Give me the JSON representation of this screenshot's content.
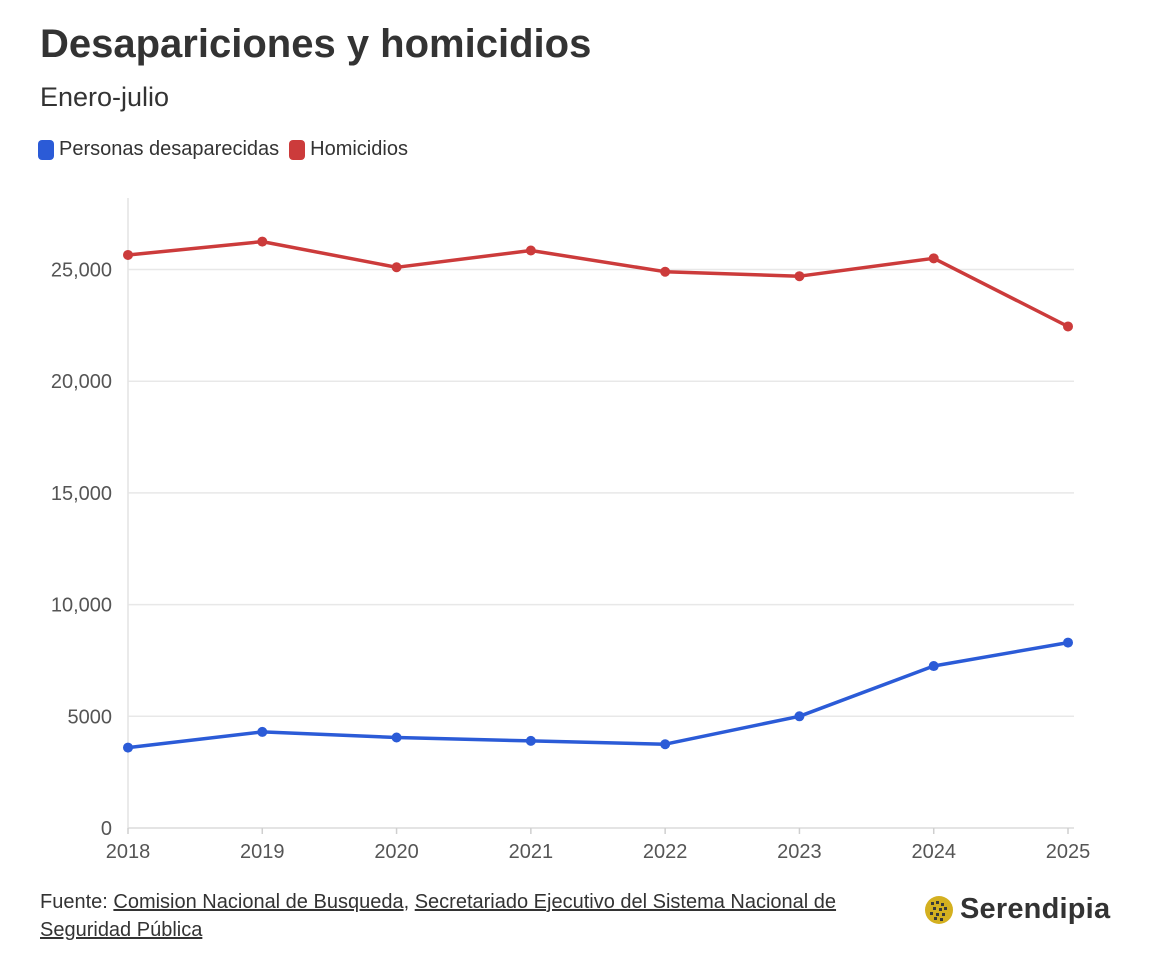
{
  "chart_data": {
    "type": "line",
    "title": "Desapariciones y homicidios",
    "subtitle": "Enero-julio",
    "x": [
      "2018",
      "2019",
      "2020",
      "2021",
      "2022",
      "2023",
      "2024",
      "2025"
    ],
    "series": [
      {
        "name": "Personas desaparecidas",
        "color": "#2b5bd7",
        "values": [
          3600,
          4300,
          4050,
          3900,
          3750,
          5000,
          7250,
          8300
        ]
      },
      {
        "name": "Homicidios",
        "color": "#cc3b3b",
        "values": [
          25650,
          26250,
          25100,
          25850,
          24900,
          24700,
          25500,
          22450
        ]
      }
    ],
    "yticks": [
      {
        "value": 0,
        "label": "0"
      },
      {
        "value": 5000,
        "label": "5000"
      },
      {
        "value": 10000,
        "label": "10,000"
      },
      {
        "value": 15000,
        "label": "15,000"
      },
      {
        "value": 20000,
        "label": "20,000"
      },
      {
        "value": 25000,
        "label": "25,000"
      }
    ],
    "ylim": [
      0,
      28200
    ],
    "grid": true,
    "legend_position": "top-left"
  },
  "footer": {
    "prefix": "Fuente: ",
    "source1": "Comision Nacional de Busqueda",
    "separator": ", ",
    "source2": "Secretariado Ejecutivo del Sistema Nacional de Seguridad Pública"
  },
  "logo": {
    "text": "Serendipia",
    "color": "#d4b020"
  }
}
